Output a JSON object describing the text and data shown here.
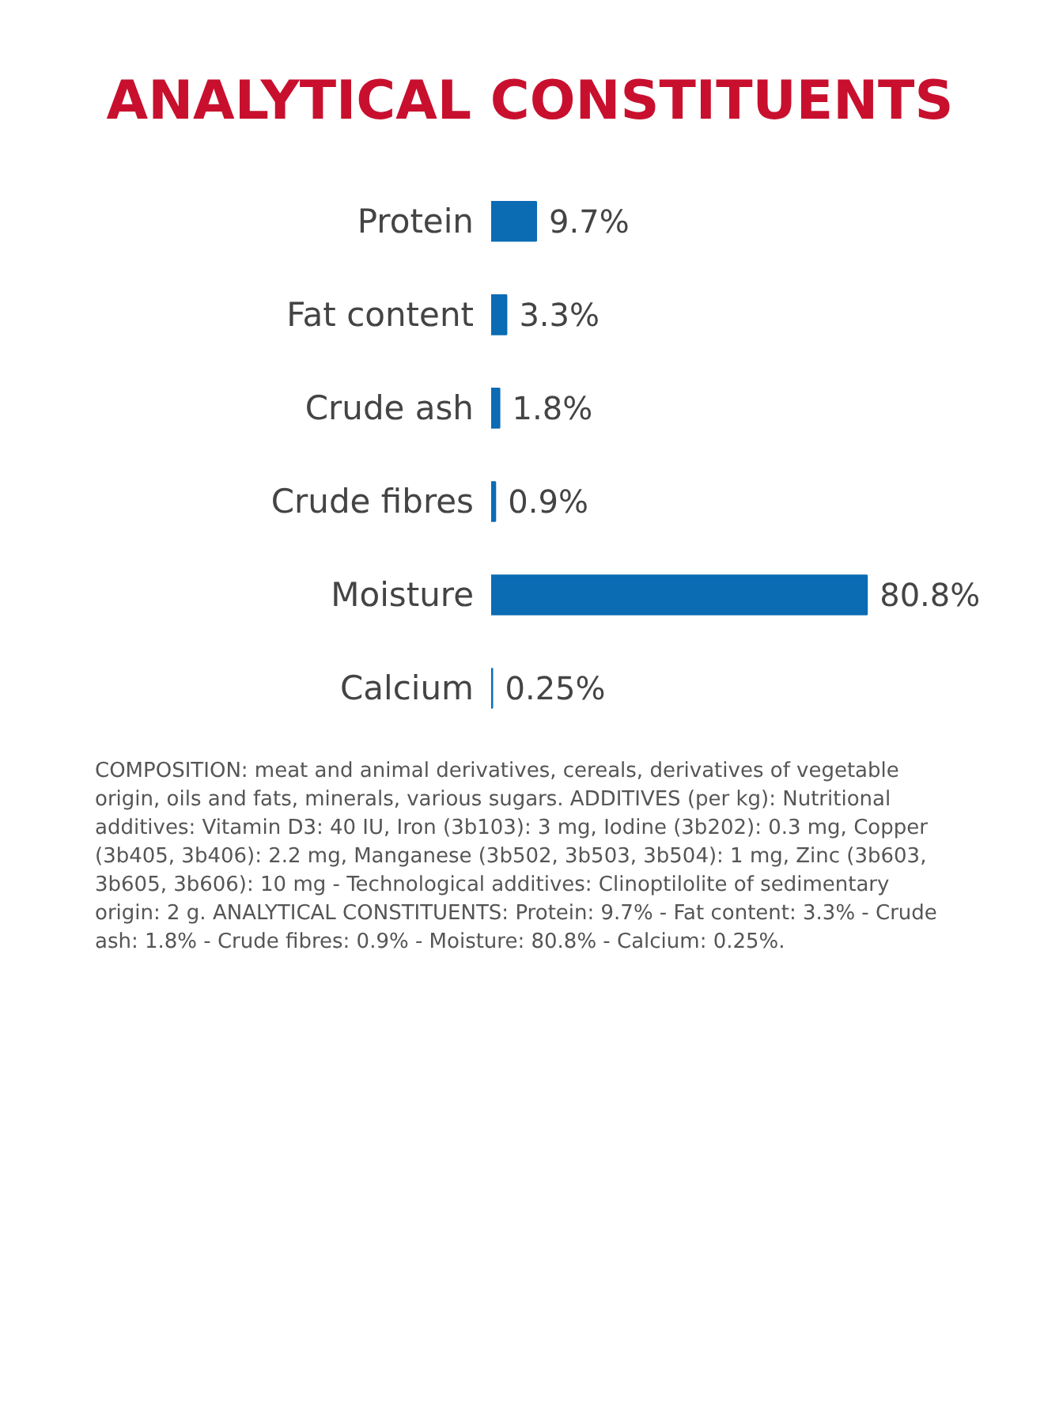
{
  "chart_data": {
    "type": "bar",
    "orientation": "horizontal",
    "title": "ANALYTICAL CONSTITUENTS",
    "categories": [
      "Protein",
      "Fat content",
      "Crude ash",
      "Crude fibres",
      "Moisture",
      "Calcium"
    ],
    "values": [
      9.7,
      3.3,
      1.8,
      0.9,
      80.8,
      0.25
    ],
    "value_labels": [
      "9.7%",
      "3.3%",
      "1.8%",
      "0.9%",
      "80.8%",
      "0.25%"
    ],
    "color": "#0b6bb3",
    "tick_labels": "y",
    "grid": false,
    "annotations": [
      "COMPOSITION: meat and animal derivatives, cereals, derivatives of vegetable origin, oils and fats, minerals, various sugars. ADDITIVES (per kg): Nutritional additives: Vitamin D3: 40 IU, Iron (3b103): 3 mg, Iodine (3b202): 0.3 mg, Copper (3b405, 3b406): 2.2 mg, Manganese (3b502, 3b503, 3b504): 1 mg, Zinc (3b603, 3b605, 3b606): 10 mg - Technological additives: Clinoptilolite of sedimentary origin: 2 g. ANALYTICAL CONSTITUENTS: Protein: 9.7% - Fat content: 3.3% - Crude ash: 1.8% - Crude fibres: 0.9% - Moisture: 80.8% - Calcium: 0.25%."
    ]
  }
}
